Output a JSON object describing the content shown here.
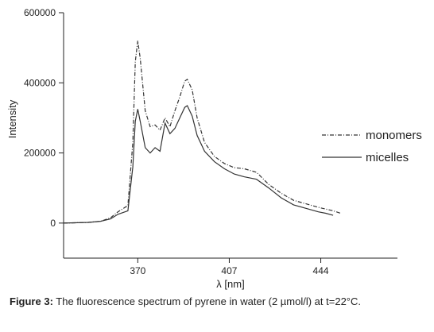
{
  "caption": {
    "label": "Figure 3:",
    "text": " The fluorescence spectrum of pyrene in water (2 µmol/l) at t=22°C."
  },
  "chart_data": {
    "type": "line",
    "title": "",
    "xlabel": "λ [nm]",
    "ylabel": "Intensity",
    "xlim": [
      340,
      475
    ],
    "ylim": [
      -100000,
      600000
    ],
    "x_ticks": [
      370,
      407,
      444
    ],
    "y_ticks": [
      0,
      200000,
      400000,
      600000
    ],
    "legend_position": "right",
    "series": [
      {
        "name": "monomers",
        "style": "dash-dot",
        "color": "#333333",
        "points": [
          [
            340,
            0
          ],
          [
            350,
            2000
          ],
          [
            355,
            5000
          ],
          [
            359,
            15000
          ],
          [
            362,
            32000
          ],
          [
            366,
            50000
          ],
          [
            368,
            230000
          ],
          [
            369,
            460000
          ],
          [
            370,
            520000
          ],
          [
            371,
            470000
          ],
          [
            373,
            320000
          ],
          [
            375,
            275000
          ],
          [
            377,
            280000
          ],
          [
            379,
            265000
          ],
          [
            381,
            300000
          ],
          [
            383,
            275000
          ],
          [
            385,
            320000
          ],
          [
            387,
            360000
          ],
          [
            389,
            405000
          ],
          [
            390,
            410000
          ],
          [
            392,
            380000
          ],
          [
            394,
            300000
          ],
          [
            397,
            230000
          ],
          [
            401,
            190000
          ],
          [
            405,
            170000
          ],
          [
            409,
            158000
          ],
          [
            413,
            155000
          ],
          [
            418,
            145000
          ],
          [
            423,
            110000
          ],
          [
            428,
            85000
          ],
          [
            433,
            65000
          ],
          [
            438,
            55000
          ],
          [
            443,
            45000
          ],
          [
            446,
            40000
          ],
          [
            449,
            35000
          ],
          [
            452,
            28000
          ]
        ]
      },
      {
        "name": "micelles",
        "style": "solid",
        "color": "#333333",
        "points": [
          [
            340,
            0
          ],
          [
            350,
            2000
          ],
          [
            355,
            5000
          ],
          [
            359,
            12000
          ],
          [
            362,
            25000
          ],
          [
            366,
            35000
          ],
          [
            368,
            160000
          ],
          [
            369,
            290000
          ],
          [
            370,
            325000
          ],
          [
            371,
            290000
          ],
          [
            373,
            215000
          ],
          [
            375,
            200000
          ],
          [
            377,
            215000
          ],
          [
            379,
            205000
          ],
          [
            381,
            285000
          ],
          [
            383,
            255000
          ],
          [
            385,
            270000
          ],
          [
            387,
            300000
          ],
          [
            389,
            330000
          ],
          [
            390,
            335000
          ],
          [
            392,
            305000
          ],
          [
            394,
            250000
          ],
          [
            397,
            205000
          ],
          [
            401,
            175000
          ],
          [
            405,
            155000
          ],
          [
            409,
            140000
          ],
          [
            413,
            132000
          ],
          [
            418,
            125000
          ],
          [
            423,
            100000
          ],
          [
            428,
            72000
          ],
          [
            433,
            52000
          ],
          [
            438,
            42000
          ],
          [
            443,
            32000
          ],
          [
            446,
            28000
          ],
          [
            449,
            22000
          ]
        ]
      }
    ]
  }
}
